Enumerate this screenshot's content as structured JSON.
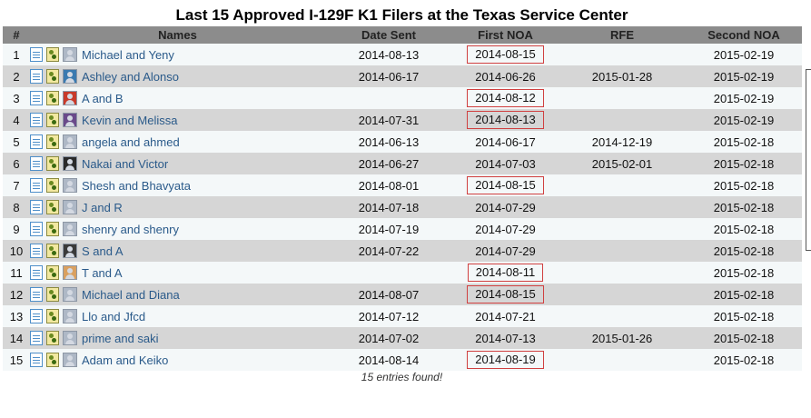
{
  "title": "Last 15 Approved I-129F K1 Filers at the Texas Service Center",
  "columns": {
    "num": "#",
    "names": "Names",
    "date_sent": "Date Sent",
    "first_noa": "First NOA",
    "rfe": "RFE",
    "second_noa": "Second NOA"
  },
  "rows": [
    {
      "num": "1",
      "name": "Michael and Yeny",
      "avatar": "default",
      "date_sent": "2014-08-13",
      "first_noa": "2014-08-15",
      "first_noa_highlighted": true,
      "rfe": "",
      "second_noa": "2015-02-19"
    },
    {
      "num": "2",
      "name": "Ashley and Alonso",
      "avatar": "photo",
      "avatar_color": "#3a7ab0",
      "date_sent": "2014-06-17",
      "first_noa": "2014-06-26",
      "first_noa_highlighted": false,
      "rfe": "2015-01-28",
      "second_noa": "2015-02-19"
    },
    {
      "num": "3",
      "name": "A and B",
      "avatar": "photo",
      "avatar_color": "#c83a2a",
      "date_sent": "",
      "first_noa": "2014-08-12",
      "first_noa_highlighted": true,
      "rfe": "",
      "second_noa": "2015-02-19"
    },
    {
      "num": "4",
      "name": "Kevin and Melissa",
      "avatar": "photo",
      "avatar_color": "#6a4a8a",
      "date_sent": "2014-07-31",
      "first_noa": "2014-08-13",
      "first_noa_highlighted": true,
      "rfe": "",
      "second_noa": "2015-02-19"
    },
    {
      "num": "5",
      "name": "angela and ahmed",
      "avatar": "default",
      "date_sent": "2014-06-13",
      "first_noa": "2014-06-17",
      "first_noa_highlighted": false,
      "rfe": "2014-12-19",
      "second_noa": "2015-02-18"
    },
    {
      "num": "6",
      "name": "Nakai and Victor",
      "avatar": "photo",
      "avatar_color": "#2a2a2a",
      "date_sent": "2014-06-27",
      "first_noa": "2014-07-03",
      "first_noa_highlighted": false,
      "rfe": "2015-02-01",
      "second_noa": "2015-02-18"
    },
    {
      "num": "7",
      "name": "Shesh and Bhavyata",
      "avatar": "default",
      "date_sent": "2014-08-01",
      "first_noa": "2014-08-15",
      "first_noa_highlighted": true,
      "rfe": "",
      "second_noa": "2015-02-18"
    },
    {
      "num": "8",
      "name": "J and R",
      "avatar": "default",
      "date_sent": "2014-07-18",
      "first_noa": "2014-07-29",
      "first_noa_highlighted": false,
      "rfe": "",
      "second_noa": "2015-02-18"
    },
    {
      "num": "9",
      "name": "shenry and shenry",
      "avatar": "default",
      "date_sent": "2014-07-19",
      "first_noa": "2014-07-29",
      "first_noa_highlighted": false,
      "rfe": "",
      "second_noa": "2015-02-18"
    },
    {
      "num": "10",
      "name": "S and A",
      "avatar": "photo",
      "avatar_color": "#3a3a3a",
      "date_sent": "2014-07-22",
      "first_noa": "2014-07-29",
      "first_noa_highlighted": false,
      "rfe": "",
      "second_noa": "2015-02-18"
    },
    {
      "num": "11",
      "name": "T and A",
      "avatar": "photo",
      "avatar_color": "#d9a060",
      "date_sent": "",
      "first_noa": "2014-08-11",
      "first_noa_highlighted": true,
      "rfe": "",
      "second_noa": "2015-02-18"
    },
    {
      "num": "12",
      "name": "Michael and Diana",
      "avatar": "default",
      "date_sent": "2014-08-07",
      "first_noa": "2014-08-15",
      "first_noa_highlighted": true,
      "rfe": "",
      "second_noa": "2015-02-18"
    },
    {
      "num": "13",
      "name": "Llo and Jfcd",
      "avatar": "default",
      "date_sent": "2014-07-12",
      "first_noa": "2014-07-21",
      "first_noa_highlighted": false,
      "rfe": "",
      "second_noa": "2015-02-18"
    },
    {
      "num": "14",
      "name": "prime and saki",
      "avatar": "default",
      "date_sent": "2014-07-02",
      "first_noa": "2014-07-13",
      "first_noa_highlighted": false,
      "rfe": "2015-01-26",
      "second_noa": "2015-02-18"
    },
    {
      "num": "15",
      "name": "Adam and Keiko",
      "avatar": "default",
      "date_sent": "2014-08-14",
      "first_noa": "2014-08-19",
      "first_noa_highlighted": true,
      "rfe": "",
      "second_noa": "2015-02-18"
    }
  ],
  "footer": "15 entries found!",
  "icons": {
    "doc": "document-icon",
    "pair": "couple-icon",
    "avatar_default": "user-silhouette-icon"
  },
  "colors": {
    "header_bg": "#8c8c8c",
    "row_odd": "#f4f8f9",
    "row_even": "#d6d6d6",
    "link": "#2a5a8a",
    "highlight_border": "#d04040",
    "avatar_default": "#aeb8c6"
  }
}
